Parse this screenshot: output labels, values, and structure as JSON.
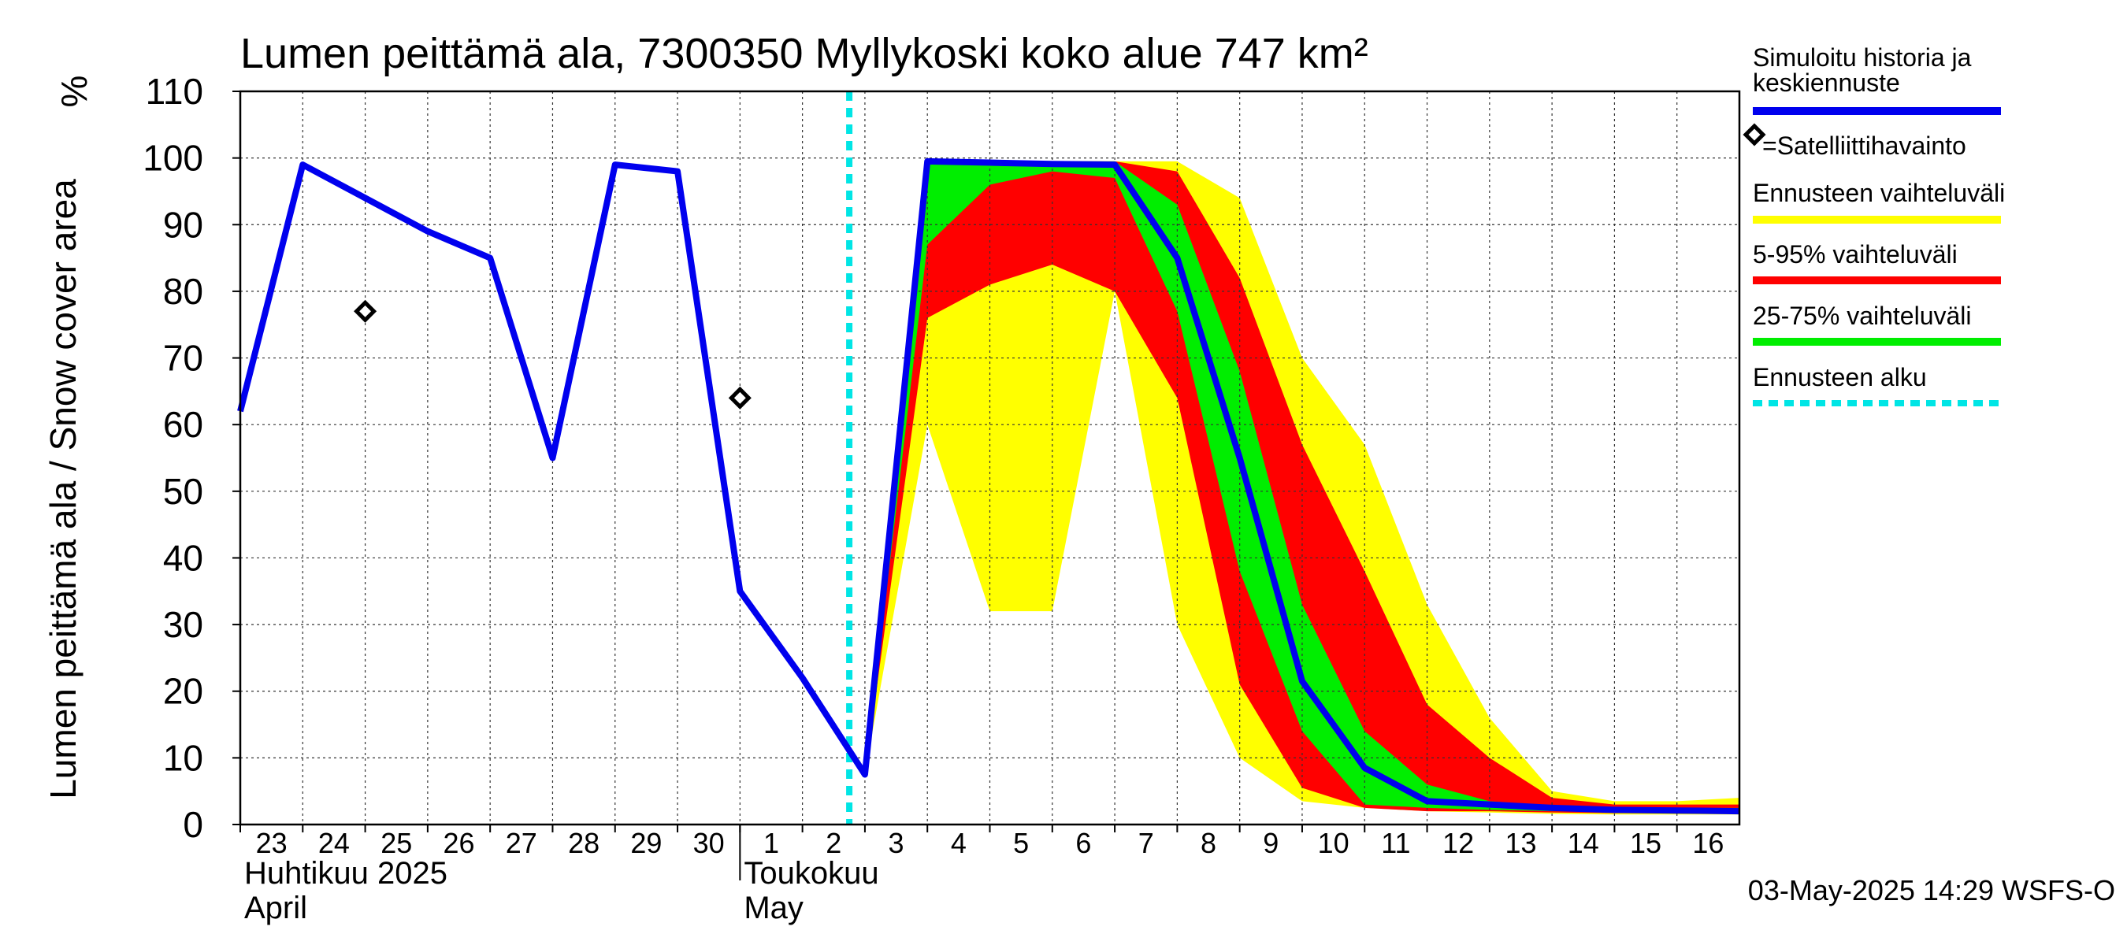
{
  "chart_data": {
    "type": "area",
    "title": "Lumen peittämä ala, 7300350 Myllykoski koko alue 747 km²",
    "ylabel": "Lumen peittämä ala / Snow cover area",
    "yunit": "%",
    "ylim": [
      0,
      110
    ],
    "yticks": [
      0,
      10,
      20,
      30,
      40,
      50,
      60,
      70,
      80,
      90,
      100,
      110
    ],
    "xlim": [
      "2025-04-23",
      "2025-05-17"
    ],
    "day_labels": [
      {
        "date": "2025-04-23",
        "label": "23"
      },
      {
        "date": "2025-04-24",
        "label": "24"
      },
      {
        "date": "2025-04-25",
        "label": "25"
      },
      {
        "date": "2025-04-26",
        "label": "26"
      },
      {
        "date": "2025-04-27",
        "label": "27"
      },
      {
        "date": "2025-04-28",
        "label": "28"
      },
      {
        "date": "2025-04-29",
        "label": "29"
      },
      {
        "date": "2025-04-30",
        "label": "30"
      },
      {
        "date": "2025-05-01",
        "label": "1"
      },
      {
        "date": "2025-05-02",
        "label": "2"
      },
      {
        "date": "2025-05-03",
        "label": "3"
      },
      {
        "date": "2025-05-04",
        "label": "4"
      },
      {
        "date": "2025-05-05",
        "label": "5"
      },
      {
        "date": "2025-05-06",
        "label": "6"
      },
      {
        "date": "2025-05-07",
        "label": "7"
      },
      {
        "date": "2025-05-08",
        "label": "8"
      },
      {
        "date": "2025-05-09",
        "label": "9"
      },
      {
        "date": "2025-05-10",
        "label": "10"
      },
      {
        "date": "2025-05-11",
        "label": "11"
      },
      {
        "date": "2025-05-12",
        "label": "12"
      },
      {
        "date": "2025-05-13",
        "label": "13"
      },
      {
        "date": "2025-05-14",
        "label": "14"
      },
      {
        "date": "2025-05-15",
        "label": "15"
      },
      {
        "date": "2025-05-16",
        "label": "16"
      }
    ],
    "month_labels": [
      {
        "date": "2025-04-23",
        "line1": "Huhtikuu  2025",
        "line2": "April"
      },
      {
        "date": "2025-05-01",
        "line1": "Toukokuu",
        "line2": "May"
      }
    ],
    "grid": true,
    "forecast_start": "2025-05-03",
    "series": [
      {
        "name": "Simuloitu historia ja keskiennuste",
        "color": "#0000ee",
        "points": [
          [
            "2025-04-23",
            62
          ],
          [
            "2025-04-24",
            99
          ],
          [
            "2025-04-25",
            94
          ],
          [
            "2025-04-26",
            89
          ],
          [
            "2025-04-27",
            85
          ],
          [
            "2025-04-28",
            55
          ],
          [
            "2025-04-29",
            99
          ],
          [
            "2025-04-30",
            98
          ],
          [
            "2025-05-01",
            35
          ],
          [
            "2025-05-02",
            22
          ],
          [
            "2025-05-03",
            7.5
          ],
          [
            "2025-05-04",
            99.5
          ],
          [
            "2025-05-05",
            99.3
          ],
          [
            "2025-05-06",
            99.1
          ],
          [
            "2025-05-07",
            99
          ],
          [
            "2025-05-08",
            85
          ],
          [
            "2025-05-09",
            55
          ],
          [
            "2025-05-10",
            21.5
          ],
          [
            "2025-05-11",
            8.5
          ],
          [
            "2025-05-12",
            3.5
          ],
          [
            "2025-05-13",
            3
          ],
          [
            "2025-05-14",
            2.5
          ],
          [
            "2025-05-15",
            2.2
          ],
          [
            "2025-05-16",
            2.1
          ],
          [
            "2025-05-17",
            2
          ]
        ]
      },
      {
        "name": "=Satelliittihavainto",
        "type": "scatter",
        "marker": "diamond",
        "points": [
          [
            "2025-04-25",
            77
          ],
          [
            "2025-05-01",
            64
          ]
        ]
      },
      {
        "name": "Ennusteen vaihteluväli",
        "type": "band",
        "color": "#ffff00",
        "x": [
          "2025-05-03",
          "2025-05-04",
          "2025-05-05",
          "2025-05-06",
          "2025-05-07",
          "2025-05-08",
          "2025-05-09",
          "2025-05-10",
          "2025-05-11",
          "2025-05-12",
          "2025-05-13",
          "2025-05-14",
          "2025-05-15",
          "2025-05-16",
          "2025-05-17"
        ],
        "upper": [
          7.5,
          99.5,
          99.5,
          99.5,
          99.5,
          99.5,
          94,
          70,
          57,
          33,
          16,
          5,
          3.5,
          3.5,
          4
        ],
        "lower": [
          7.5,
          60,
          32,
          32,
          80,
          30,
          10,
          3.5,
          2.5,
          2,
          1.8,
          1.6,
          1.5,
          1.5,
          1.5
        ]
      },
      {
        "name": "5-95% vaihteluväli",
        "type": "band",
        "color": "#ff0000",
        "x": [
          "2025-05-03",
          "2025-05-04",
          "2025-05-05",
          "2025-05-06",
          "2025-05-07",
          "2025-05-08",
          "2025-05-09",
          "2025-05-10",
          "2025-05-11",
          "2025-05-12",
          "2025-05-13",
          "2025-05-14",
          "2025-05-15",
          "2025-05-16",
          "2025-05-17"
        ],
        "upper": [
          7.5,
          99.5,
          99.5,
          99.5,
          99.5,
          98,
          82,
          57,
          38,
          18,
          10,
          4,
          3,
          3,
          3
        ],
        "lower": [
          7.5,
          76,
          81,
          84,
          80,
          64,
          21,
          5.5,
          2.5,
          2,
          2,
          1.8,
          1.7,
          1.7,
          1.7
        ]
      },
      {
        "name": "25-75% vaihteluväli",
        "type": "band",
        "color": "#00ee00",
        "x": [
          "2025-05-03",
          "2025-05-04",
          "2025-05-05",
          "2025-05-06",
          "2025-05-07",
          "2025-05-08",
          "2025-05-09",
          "2025-05-10",
          "2025-05-11",
          "2025-05-12",
          "2025-05-13",
          "2025-05-14",
          "2025-05-15",
          "2025-05-16",
          "2025-05-17"
        ],
        "upper": [
          7.5,
          99.5,
          99.5,
          99.5,
          99.5,
          93,
          68,
          33,
          14,
          6,
          3.5,
          2.8,
          2.5,
          2.5,
          2.5
        ],
        "lower": [
          7.5,
          87,
          96,
          98,
          97,
          77,
          38,
          14,
          3,
          2.5,
          2.2,
          2,
          2,
          2,
          2
        ]
      }
    ],
    "legend": {
      "position": "right",
      "entries": [
        {
          "label_lines": [
            "Simuloitu historia ja",
            "keskiennuste"
          ],
          "style": "line",
          "color": "#0000ee"
        },
        {
          "label_lines": [
            "=Satelliittihavainto"
          ],
          "style": "diamond",
          "color": "#000000"
        },
        {
          "label_lines": [
            "Ennusteen vaihteluväli"
          ],
          "style": "line",
          "color": "#ffff00"
        },
        {
          "label_lines": [
            "5-95% vaihteluväli"
          ],
          "style": "line",
          "color": "#ff0000"
        },
        {
          "label_lines": [
            "25-75% vaihteluväli"
          ],
          "style": "line",
          "color": "#00ee00"
        },
        {
          "label_lines": [
            "Ennusteen alku"
          ],
          "style": "dashed",
          "color": "#00e5e5"
        }
      ]
    },
    "footer": "03-May-2025 14:29 WSFS-O"
  }
}
